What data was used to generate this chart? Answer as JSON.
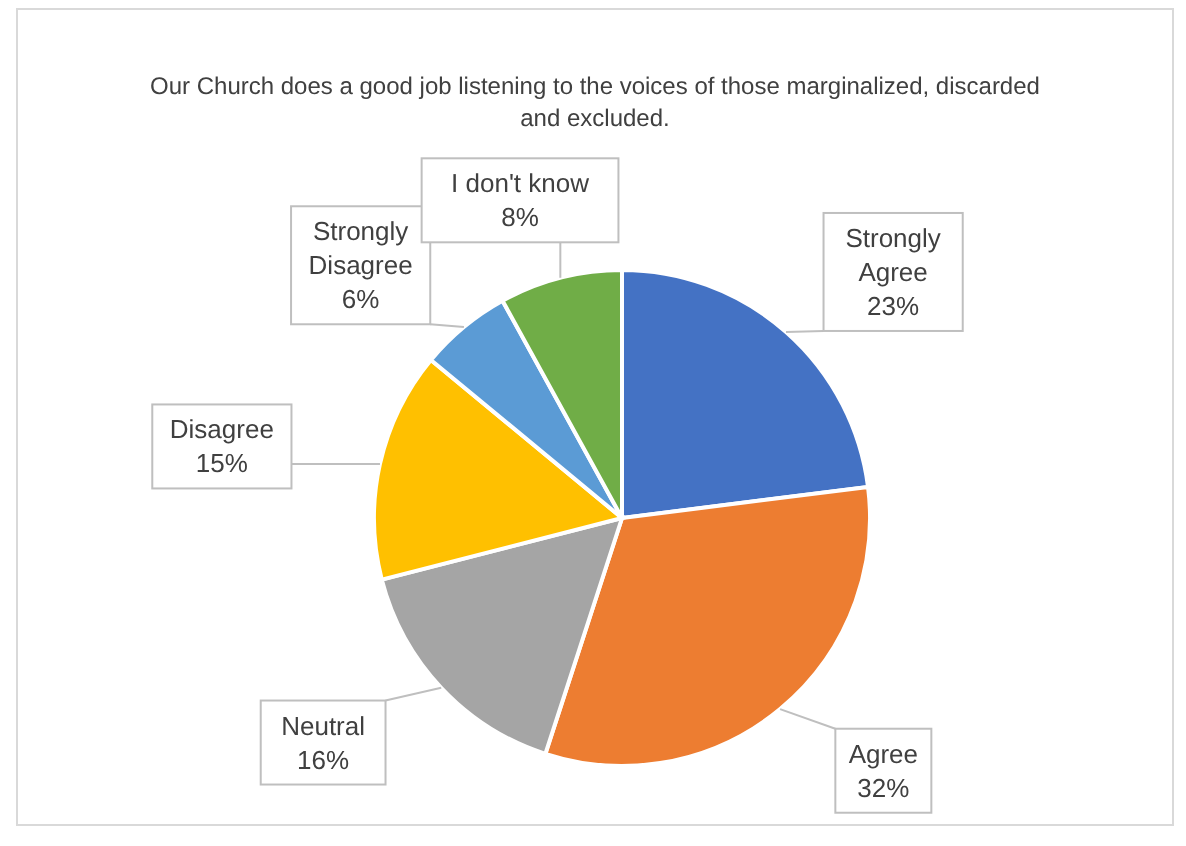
{
  "chart_data": {
    "type": "pie",
    "title": "Our Church does a good job listening to the voices of those marginalized, discarded and excluded.",
    "categories": [
      "Strongly Agree",
      "Agree",
      "Neutral",
      "Disagree",
      "Strongly Disagree",
      "I don't know"
    ],
    "values": [
      23,
      32,
      16,
      15,
      6,
      8
    ],
    "colors": [
      "#4472c4",
      "#ed7d31",
      "#a5a5a5",
      "#ffc000",
      "#5b9bd5",
      "#70ad47"
    ],
    "value_labels": [
      "23%",
      "32%",
      "16%",
      "15%",
      "6%",
      "8%"
    ],
    "legend": false
  }
}
